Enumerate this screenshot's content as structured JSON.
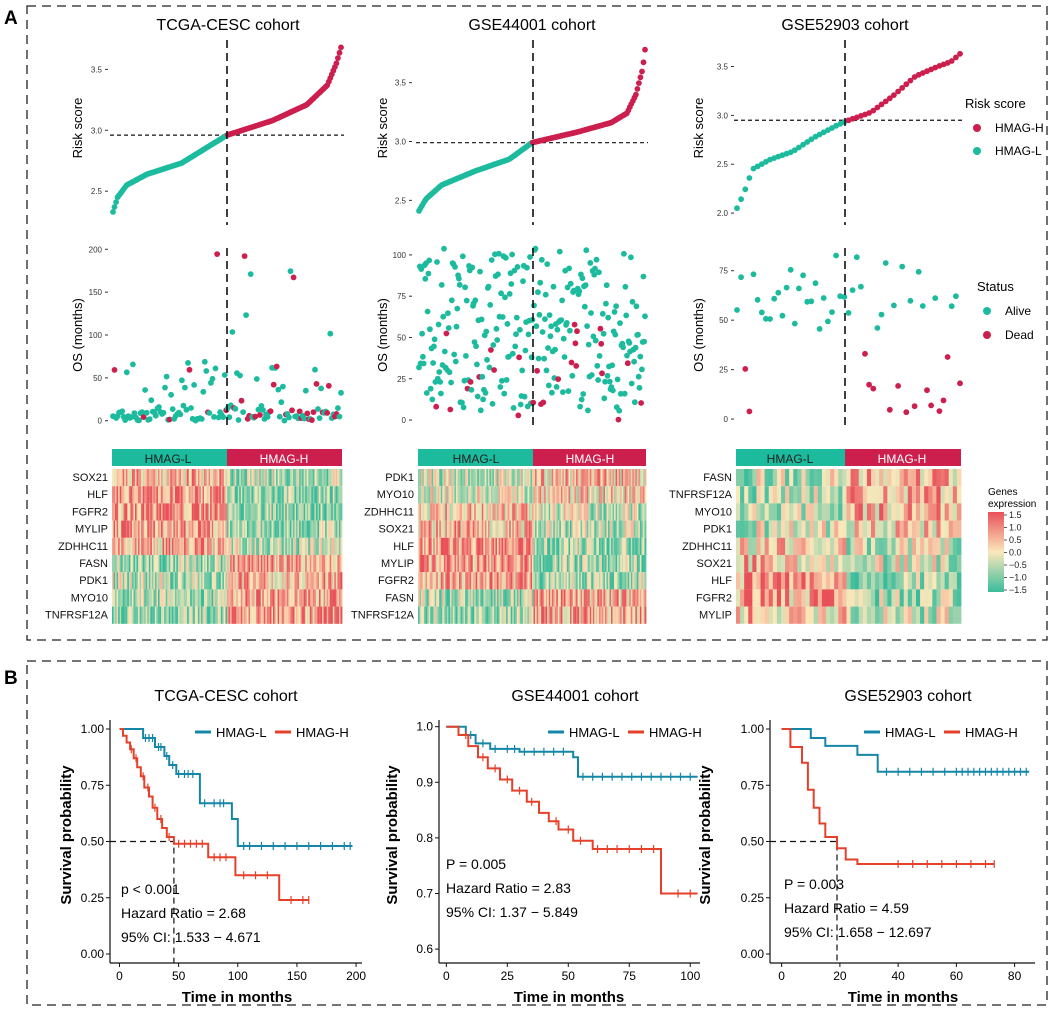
{
  "panel_labels": {
    "a": "A",
    "b": "B"
  },
  "colors": {
    "high": "#cc1f4e",
    "low": "#1dbb9e",
    "km_low": "#1487a8",
    "km_high": "#e5412a",
    "hm_hi": "#e8505a",
    "hm_mid": "#fbe8ba",
    "hm_lo": "#39bc9c"
  },
  "legends": {
    "risk_title": "Risk score",
    "risk_items": [
      "HMAG-H",
      "HMAG-L"
    ],
    "status_title": "Status",
    "status_items": [
      "Alive",
      "Dead"
    ],
    "heat_title_1": "Genes",
    "heat_title_2": "expression",
    "heat_ticks": [
      "1.5",
      "1.0",
      "0.5",
      "0.0",
      "−0.5",
      "−1.0",
      "−1.5"
    ]
  },
  "chart_data": [
    {
      "type": "scatter",
      "name": "risk-curve",
      "cohort": "TCGA-CESC cohort",
      "title": "TCGA-CESC cohort",
      "ylabel": "Risk score",
      "ylim": [
        2.28,
        3.7
      ],
      "yticks": [
        "2.5",
        "3.0",
        "3.5"
      ],
      "n": 150,
      "cutoff_index": 75,
      "cutoff_value": 2.96,
      "risk_anchors": [
        [
          0,
          2.33
        ],
        [
          0.02,
          2.45
        ],
        [
          0.06,
          2.55
        ],
        [
          0.15,
          2.64
        ],
        [
          0.3,
          2.73
        ],
        [
          0.5,
          2.96
        ],
        [
          0.7,
          3.08
        ],
        [
          0.85,
          3.21
        ],
        [
          0.94,
          3.37
        ],
        [
          0.98,
          3.55
        ],
        [
          1,
          3.68
        ]
      ]
    },
    {
      "type": "scatter",
      "name": "survival-scatter",
      "cohort": "TCGA-CESC cohort",
      "ylabel": "OS (months)",
      "ylim": [
        -5,
        205
      ],
      "yticks": [
        "0",
        "50",
        "100",
        "150",
        "200"
      ],
      "n": 150,
      "max_os": 195,
      "dead_rate": 0.25,
      "seed": 11
    },
    {
      "type": "heatmap",
      "name": "gene-heatmap",
      "cohort": "TCGA-CESC cohort",
      "groups": [
        "HMAG-L",
        "HMAG-H"
      ],
      "columns": 150,
      "genes": [
        "SOX21",
        "HLF",
        "FGFR2",
        "MYLIP",
        "ZDHHC11",
        "FASN",
        "PDK1",
        "MYO10",
        "TNFRSF12A"
      ],
      "trend": [
        -0.6,
        -1.0,
        -0.9,
        -0.8,
        -0.6,
        0.7,
        0.6,
        0.8,
        0.9
      ],
      "seed": 21
    },
    {
      "type": "line",
      "name": "km-curve",
      "cohort": "TCGA-CESC cohort",
      "title": "TCGA-CESC cohort",
      "xlabel": "Time in months",
      "ylabel": "Survival probability",
      "xlim": [
        -8,
        205
      ],
      "ylim": [
        -0.04,
        1.04
      ],
      "xticks": [
        0,
        50,
        100,
        150,
        200
      ],
      "yticks": [
        0,
        0.25,
        0.5,
        0.75,
        1.0
      ],
      "ytick_labels": [
        "0.00",
        "0.25",
        "0.50",
        "0.75",
        "1.00"
      ],
      "median_lines": [
        [
          -8,
          0.5
        ],
        [
          46,
          0.5
        ],
        [
          46,
          -0.04
        ]
      ],
      "series": [
        {
          "name": "HMAG-L",
          "color": "#1487a8",
          "steps": [
            [
              0,
              1.0
            ],
            [
              20,
              0.96
            ],
            [
              30,
              0.92
            ],
            [
              38,
              0.88
            ],
            [
              42,
              0.84
            ],
            [
              48,
              0.8
            ],
            [
              68,
              0.67
            ],
            [
              95,
              0.6
            ],
            [
              100,
              0.48
            ],
            [
              197,
              0.48
            ]
          ],
          "censor": [
            22,
            25,
            28,
            33,
            35,
            40,
            45,
            50,
            55,
            58,
            62,
            72,
            80,
            85,
            88,
            105,
            110,
            120,
            130,
            140,
            150,
            160,
            170,
            180,
            190,
            195
          ]
        },
        {
          "name": "HMAG-H",
          "color": "#e5412a",
          "steps": [
            [
              0,
              1.0
            ],
            [
              3,
              0.97
            ],
            [
              6,
              0.94
            ],
            [
              9,
              0.91
            ],
            [
              12,
              0.87
            ],
            [
              15,
              0.83
            ],
            [
              18,
              0.79
            ],
            [
              21,
              0.74
            ],
            [
              25,
              0.7
            ],
            [
              28,
              0.65
            ],
            [
              32,
              0.6
            ],
            [
              36,
              0.56
            ],
            [
              40,
              0.52
            ],
            [
              46,
              0.49
            ],
            [
              75,
              0.43
            ],
            [
              98,
              0.35
            ],
            [
              135,
              0.24
            ],
            [
              160,
              0.24
            ]
          ],
          "censor": [
            10,
            14,
            20,
            24,
            30,
            35,
            42,
            50,
            55,
            60,
            65,
            70,
            80,
            85,
            90,
            105,
            115,
            125,
            145,
            155,
            160
          ]
        }
      ],
      "stats": [
        "p < 0.001",
        "Hazard Ratio = 2.68",
        "95% CI: 1.533 − 4.671"
      ]
    },
    {
      "type": "scatter",
      "name": "risk-curve",
      "cohort": "GSE44001 cohort",
      "title": "GSE44001 cohort",
      "ylabel": "Risk score",
      "ylim": [
        2.35,
        3.82
      ],
      "yticks": [
        "2.5",
        "3.0",
        "3.5"
      ],
      "n": 150,
      "cutoff_index": 75,
      "cutoff_value": 2.99,
      "risk_anchors": [
        [
          0,
          2.41
        ],
        [
          0.03,
          2.51
        ],
        [
          0.1,
          2.63
        ],
        [
          0.25,
          2.75
        ],
        [
          0.4,
          2.85
        ],
        [
          0.5,
          2.99
        ],
        [
          0.7,
          3.08
        ],
        [
          0.85,
          3.16
        ],
        [
          0.92,
          3.24
        ],
        [
          0.96,
          3.4
        ],
        [
          0.99,
          3.62
        ],
        [
          1,
          3.78
        ]
      ]
    },
    {
      "type": "scatter",
      "name": "survival-scatter",
      "cohort": "GSE44001 cohort",
      "ylabel": "OS (months)",
      "ylim": [
        -3,
        106
      ],
      "yticks": [
        "0",
        "25",
        "50",
        "75",
        "100"
      ],
      "n": 290,
      "max_os": 104,
      "dead_rate": 0.12,
      "seed": 33
    },
    {
      "type": "heatmap",
      "name": "gene-heatmap",
      "cohort": "GSE44001 cohort",
      "groups": [
        "HMAG-L",
        "HMAG-H"
      ],
      "columns": 150,
      "genes": [
        "PDK1",
        "MYO10",
        "ZDHHC11",
        "SOX21",
        "HLF",
        "MYLIP",
        "FGFR2",
        "FASN",
        "TNFRSF12A"
      ],
      "trend": [
        0.4,
        0.3,
        -0.4,
        -0.5,
        -0.9,
        -0.8,
        -0.7,
        0.6,
        0.7
      ],
      "seed": 44
    },
    {
      "type": "line",
      "name": "km-curve",
      "cohort": "GSE44001 cohort",
      "title": "GSE44001 cohort",
      "xlabel": "Time in months",
      "ylabel": "Survival probability",
      "xlim": [
        -3,
        104
      ],
      "ylim": [
        0.575,
        1.012
      ],
      "xticks": [
        0,
        25,
        50,
        75,
        100
      ],
      "yticks": [
        0.6,
        0.7,
        0.8,
        0.9,
        1.0
      ],
      "ytick_labels": [
        "0.6",
        "0.7",
        "0.8",
        "0.9",
        "1.0"
      ],
      "median_lines": [],
      "series": [
        {
          "name": "HMAG-L",
          "color": "#1487a8",
          "steps": [
            [
              0,
              1.0
            ],
            [
              8,
              0.985
            ],
            [
              12,
              0.97
            ],
            [
              18,
              0.96
            ],
            [
              30,
              0.955
            ],
            [
              52,
              0.945
            ],
            [
              54,
              0.91
            ],
            [
              103,
              0.91
            ]
          ],
          "censor": [
            10,
            15,
            20,
            25,
            28,
            32,
            36,
            40,
            44,
            48,
            56,
            60,
            64,
            68,
            72,
            76,
            80,
            84,
            88,
            92,
            96,
            100
          ]
        },
        {
          "name": "HMAG-H",
          "color": "#e5412a",
          "steps": [
            [
              0,
              1.0
            ],
            [
              5,
              0.985
            ],
            [
              9,
              0.965
            ],
            [
              13,
              0.945
            ],
            [
              17,
              0.925
            ],
            [
              22,
              0.905
            ],
            [
              27,
              0.885
            ],
            [
              33,
              0.865
            ],
            [
              38,
              0.845
            ],
            [
              42,
              0.83
            ],
            [
              46,
              0.815
            ],
            [
              52,
              0.795
            ],
            [
              60,
              0.78
            ],
            [
              88,
              0.7
            ],
            [
              103,
              0.7
            ]
          ],
          "censor": [
            8,
            15,
            20,
            25,
            30,
            35,
            45,
            50,
            55,
            62,
            66,
            70,
            75,
            80,
            85,
            95,
            100
          ]
        }
      ],
      "stats": [
        "P = 0.005",
        "Hazard Ratio = 2.83",
        "95% CI: 1.37 − 5.849"
      ]
    },
    {
      "type": "scatter",
      "name": "risk-curve",
      "cohort": "GSE52903 cohort",
      "title": "GSE52903 cohort",
      "ylabel": "Risk score",
      "ylim": [
        1.95,
        3.72
      ],
      "yticks": [
        "2.0",
        "2.5",
        "3.0",
        "3.5"
      ],
      "n": 55,
      "cutoff_index": 27,
      "cutoff_value": 2.95,
      "risk_anchors": [
        [
          0,
          2.05
        ],
        [
          0.03,
          2.2
        ],
        [
          0.07,
          2.45
        ],
        [
          0.15,
          2.55
        ],
        [
          0.25,
          2.63
        ],
        [
          0.35,
          2.78
        ],
        [
          0.45,
          2.9
        ],
        [
          0.5,
          2.95
        ],
        [
          0.6,
          3.03
        ],
        [
          0.7,
          3.2
        ],
        [
          0.8,
          3.4
        ],
        [
          0.9,
          3.5
        ],
        [
          0.96,
          3.55
        ],
        [
          1,
          3.63
        ]
      ]
    },
    {
      "type": "scatter",
      "name": "survival-scatter",
      "cohort": "GSE52903 cohort",
      "ylabel": "OS (months)",
      "ylim": [
        -3,
        88
      ],
      "yticks": [
        "0",
        "25",
        "50",
        "75"
      ],
      "n": 55,
      "max_os": 85,
      "dead_rate": 0.25,
      "seed": 55
    },
    {
      "type": "heatmap",
      "name": "gene-heatmap",
      "cohort": "GSE52903 cohort",
      "groups": [
        "HMAG-L",
        "HMAG-H"
      ],
      "columns": 55,
      "genes": [
        "FASN",
        "TNFRSF12A",
        "MYO10",
        "PDK1",
        "ZDHHC11",
        "SOX21",
        "HLF",
        "FGFR2",
        "MYLIP"
      ],
      "trend": [
        0.5,
        0.6,
        0.6,
        0.3,
        -0.3,
        -0.4,
        -0.8,
        -0.7,
        -0.4
      ],
      "seed": 66
    },
    {
      "type": "line",
      "name": "km-curve",
      "cohort": "GSE52903 cohort",
      "title": "GSE52903 cohort",
      "xlabel": "Time in months",
      "ylabel": "Survival probability",
      "xlim": [
        -4,
        87
      ],
      "ylim": [
        -0.04,
        1.04
      ],
      "xticks": [
        0,
        20,
        40,
        60,
        80
      ],
      "yticks": [
        0,
        0.25,
        0.5,
        0.75,
        1.0
      ],
      "ytick_labels": [
        "0.00",
        "0.25",
        "0.50",
        "0.75",
        "1.00"
      ],
      "median_lines": [
        [
          -4,
          0.5
        ],
        [
          19,
          0.5
        ],
        [
          19,
          -0.04
        ]
      ],
      "series": [
        {
          "name": "HMAG-L",
          "color": "#1487a8",
          "steps": [
            [
              0,
              1.0
            ],
            [
              10,
              0.96
            ],
            [
              15,
              0.925
            ],
            [
              26,
              0.885
            ],
            [
              33,
              0.81
            ],
            [
              85,
              0.81
            ]
          ],
          "censor": [
            36,
            40,
            44,
            48,
            52,
            56,
            60,
            62,
            64,
            66,
            68,
            70,
            72,
            74,
            76,
            78,
            80,
            82,
            84
          ]
        },
        {
          "name": "HMAG-H",
          "color": "#e5412a",
          "steps": [
            [
              0,
              1.0
            ],
            [
              3,
              0.92
            ],
            [
              7,
              0.85
            ],
            [
              9,
              0.73
            ],
            [
              11,
              0.65
            ],
            [
              13,
              0.58
            ],
            [
              15,
              0.52
            ],
            [
              19,
              0.47
            ],
            [
              22,
              0.42
            ],
            [
              26,
              0.4
            ],
            [
              73,
              0.4
            ]
          ],
          "censor": [
            40,
            45,
            50,
            55,
            60,
            65,
            70,
            73
          ]
        }
      ],
      "stats": [
        "P = 0.003",
        "Hazard Ratio = 4.59",
        "95% CI: 1.658 − 12.697"
      ]
    }
  ]
}
